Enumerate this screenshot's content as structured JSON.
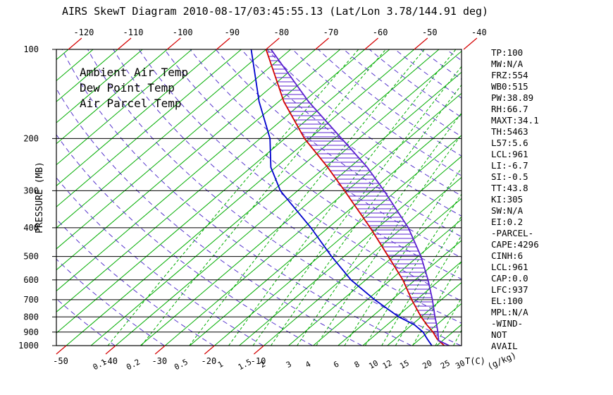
{
  "header": {
    "title": "AIRS SkewT Diagram 2010-08-17/03:45:55.13 (Lat/Lon 3.78/144.91 deg)"
  },
  "legend": {
    "items": [
      {
        "label": "Ambient Air Temp",
        "color": "#d40000"
      },
      {
        "label": "Dew Point Temp",
        "color": "#0000cd"
      },
      {
        "label": "Air Parcel Temp",
        "color": "#5a1fd0"
      }
    ]
  },
  "axes": {
    "ylabel": "PRESSURE (MB)",
    "pressure_levels": [
      100,
      200,
      300,
      400,
      500,
      600,
      700,
      800,
      900,
      1000
    ],
    "top_temp_ticks": [
      -120,
      -110,
      -100,
      -90,
      -80,
      -70,
      -60,
      -50,
      -40
    ],
    "bottom_temp_ticks": [
      -50,
      -40,
      -30,
      -20,
      -10
    ],
    "temp_unit_label": "T(C)",
    "mixing_unit_label": "(g/kg)"
  },
  "stats_panel": {
    "lines": [
      "TP:100",
      "MW:N/A",
      "FRZ:554",
      "WB0:515",
      "PW:38.89",
      "RH:66.7",
      "MAXT:34.1",
      "TH:5463",
      "L57:5.6",
      "LCL:961",
      "LI:-6.7",
      "SI:-0.5",
      "TT:43.8",
      "KI:305",
      "SW:N/A",
      "EI:0.2",
      "-PARCEL-",
      "CAPE:4296",
      "CINH:6",
      "LCL:961",
      "CAP:0.0",
      "LFC:937",
      "EL:100",
      "MPL:N/A",
      "-WIND-",
      "NOT",
      "AVAIL"
    ]
  },
  "colors": {
    "isobar": "#000000",
    "isotherm": "#00ad00",
    "mixing_ratio": "#00ad00",
    "dry_adiabat": "#5533cc",
    "ambient": "#d40000",
    "dewpoint": "#0000cd",
    "parcel": "#5a1fd0",
    "hatch": "#5a1fd0",
    "mixing_label": "#7d12cc"
  },
  "chart_data": {
    "type": "line",
    "title": "AIRS SkewT Diagram 2010-08-17/03:45:55.13 (Lat/Lon 3.78/144.91 deg)",
    "ylabel": "PRESSURE (MB)",
    "y_scale": "log",
    "ylim": [
      1000,
      100
    ],
    "x_surface_range_C": [
      -52,
      30
    ],
    "grid": "on",
    "legend_position": "upper-left",
    "isotherms": {
      "start": -120,
      "end": 30,
      "step": 5
    },
    "dry_adiabats_K": {
      "start": 233,
      "end": 453,
      "step": 10
    },
    "mixing_ratio_g_kg": [
      0.1,
      0.2,
      0.5,
      1,
      1.5,
      2,
      3,
      4,
      6,
      8,
      10,
      12,
      15,
      20,
      25,
      30
    ],
    "hatch": {
      "between": [
        "parcel",
        "ambient"
      ],
      "top_p": 100,
      "bottom_p": 937
    },
    "series": [
      {
        "id": "ambient",
        "name": "Ambient Air Temp",
        "color": "#d40000",
        "points": [
          [
            1000,
            26.5
          ],
          [
            950,
            23.5
          ],
          [
            900,
            21
          ],
          [
            850,
            18
          ],
          [
            800,
            15
          ],
          [
            700,
            9
          ],
          [
            600,
            2.5
          ],
          [
            500,
            -6
          ],
          [
            400,
            -16.5
          ],
          [
            300,
            -30.5
          ],
          [
            250,
            -39.5
          ],
          [
            200,
            -51
          ],
          [
            150,
            -64
          ],
          [
            100,
            -80
          ]
        ]
      },
      {
        "id": "dewpoint",
        "name": "Dew Point Temp",
        "color": "#0000cd",
        "points": [
          [
            1000,
            24
          ],
          [
            950,
            21.5
          ],
          [
            900,
            19
          ],
          [
            850,
            15.5
          ],
          [
            800,
            10.5
          ],
          [
            700,
            1.5
          ],
          [
            600,
            -8
          ],
          [
            500,
            -17.5
          ],
          [
            400,
            -28.5
          ],
          [
            300,
            -43.5
          ],
          [
            250,
            -51
          ],
          [
            200,
            -58
          ],
          [
            150,
            -69
          ],
          [
            100,
            -83
          ]
        ]
      },
      {
        "id": "parcel",
        "name": "Air Parcel Temp",
        "color": "#5a1fd0",
        "points": [
          [
            1000,
            27.5
          ],
          [
            961,
            24.1
          ],
          [
            937,
            23.3
          ],
          [
            900,
            22
          ],
          [
            850,
            20
          ],
          [
            800,
            17.8
          ],
          [
            700,
            13.2
          ],
          [
            600,
            7.6
          ],
          [
            500,
            0.6
          ],
          [
            400,
            -8.8
          ],
          [
            300,
            -22.5
          ],
          [
            250,
            -31.5
          ],
          [
            200,
            -43.5
          ],
          [
            150,
            -59
          ],
          [
            100,
            -79
          ]
        ]
      }
    ]
  }
}
